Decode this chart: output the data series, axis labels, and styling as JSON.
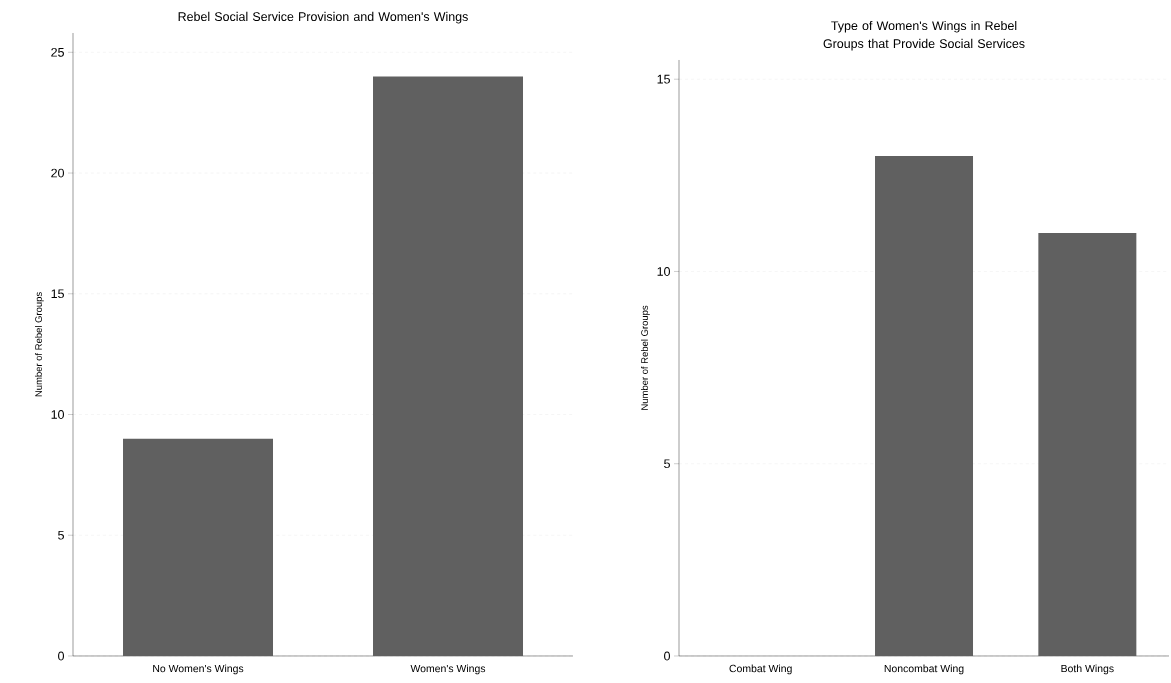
{
  "chart_data": [
    {
      "type": "bar",
      "title": "Rebel Social Service Provision and Women's Wings",
      "ylabel": "Number of Rebel Groups",
      "categories": [
        "No Women's Wings",
        "Women's Wings"
      ],
      "values": [
        9,
        24
      ],
      "color": "#606060",
      "ylim": [
        0,
        25.8
      ],
      "yticks": [
        0,
        5,
        10,
        15,
        20,
        25
      ],
      "grid": "y"
    },
    {
      "type": "bar",
      "title": "Type of Women's Wings in Rebel Groups that Provide Social Services",
      "ylabel": "Number of Rebel Groups",
      "categories": [
        "Combat Wing",
        "Noncombat Wing",
        "Both Wings"
      ],
      "values": [
        0,
        13,
        11
      ],
      "color": "#606060",
      "ylim": [
        0,
        15.5
      ],
      "yticks": [
        0,
        5,
        10,
        15
      ],
      "grid": "y"
    }
  ]
}
